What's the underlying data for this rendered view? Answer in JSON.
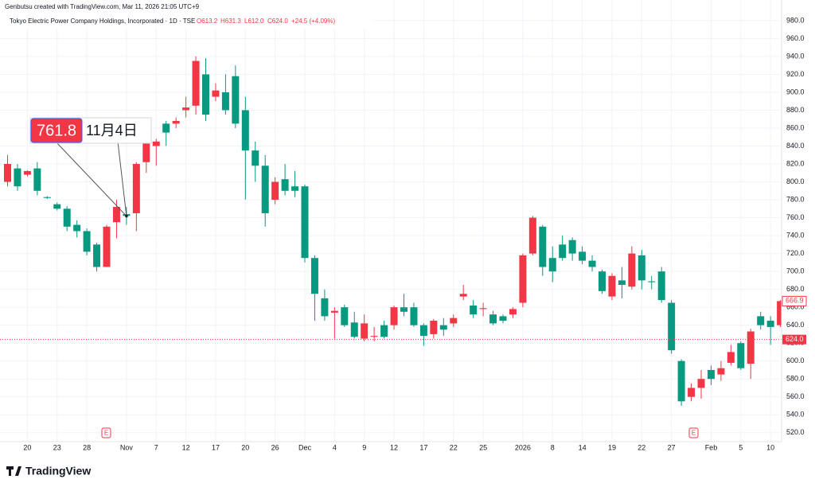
{
  "header": {
    "credit": "Genbutsu created with TradingView.com, Mar 11, 2026 21:05 UTC+9",
    "symbol": "Tokyo Electric Power Company Holdings, Incorporated · 1D · TSE",
    "ohlc": [
      "O613.2",
      "H631.3",
      "L612.0",
      "C624.0"
    ],
    "change": "+24.5 (+4.09%)"
  },
  "footer": {
    "logo": "TradingView"
  },
  "chart_data": {
    "type": "candlestick",
    "categories": [
      null,
      null,
      "20",
      null,
      null,
      "23",
      null,
      null,
      "28",
      null,
      null,
      null,
      "Nov",
      null,
      null,
      "7",
      null,
      null,
      "12",
      null,
      null,
      "17",
      null,
      null,
      "20",
      null,
      null,
      "26",
      null,
      null,
      "Dec",
      null,
      null,
      "4",
      null,
      null,
      "9",
      null,
      null,
      "12",
      null,
      null,
      "17",
      null,
      null,
      "22",
      null,
      null,
      "25",
      null,
      null,
      null,
      "2026",
      null,
      null,
      "8",
      null,
      null,
      "14",
      null,
      null,
      "19",
      null,
      null,
      "22",
      null,
      null,
      "27",
      null,
      null,
      null,
      "Feb",
      null,
      null,
      "5",
      null,
      null,
      "10",
      null
    ],
    "open": [
      800,
      815,
      808,
      815,
      783,
      775,
      770,
      752,
      745,
      730,
      705,
      755,
      764,
      765,
      822,
      840,
      865,
      865,
      880,
      885,
      920,
      895,
      900,
      918,
      880,
      835,
      818,
      780,
      803,
      795,
      795,
      715,
      670,
      654,
      660,
      643,
      625,
      627,
      640,
      640,
      660,
      660,
      640,
      630,
      640,
      642,
      672,
      662,
      658,
      652,
      650,
      652,
      665,
      720,
      750,
      715,
      730,
      735,
      722,
      712,
      700,
      672,
      690,
      683,
      718,
      689,
      700,
      665,
      600,
      560,
      570,
      590,
      585,
      598,
      620,
      597,
      650,
      645,
      640
    ],
    "high": [
      830,
      820,
      813,
      822,
      784,
      777,
      773,
      757,
      748,
      732,
      752,
      780,
      772,
      822,
      850,
      848,
      868,
      872,
      895,
      940,
      938,
      910,
      920,
      930,
      895,
      845,
      830,
      805,
      820,
      812,
      797,
      718,
      680,
      660,
      663,
      655,
      652,
      638,
      645,
      662,
      675,
      665,
      642,
      647,
      648,
      652,
      685,
      668,
      665,
      656,
      652,
      660,
      720,
      762,
      752,
      728,
      740,
      738,
      728,
      718,
      702,
      698,
      705,
      728,
      724,
      695,
      705,
      668,
      602,
      575,
      590,
      595,
      600,
      618,
      622,
      636,
      655,
      650,
      668
    ],
    "low": [
      795,
      790,
      806,
      785,
      781,
      768,
      745,
      738,
      718,
      700,
      705,
      737,
      752,
      745,
      810,
      818,
      840,
      860,
      872,
      875,
      868,
      890,
      875,
      860,
      780,
      800,
      750,
      775,
      785,
      783,
      710,
      645,
      645,
      625,
      638,
      625,
      622,
      622,
      625,
      635,
      650,
      638,
      617,
      625,
      628,
      638,
      668,
      648,
      650,
      640,
      642,
      648,
      660,
      718,
      695,
      688,
      712,
      712,
      708,
      700,
      675,
      668,
      670,
      680,
      680,
      680,
      665,
      608,
      550,
      555,
      558,
      573,
      578,
      595,
      590,
      580,
      635,
      618,
      638
    ],
    "close": [
      820,
      795,
      812,
      790,
      782,
      770,
      750,
      745,
      722,
      705,
      750,
      772,
      762,
      820,
      845,
      845,
      855,
      868,
      883,
      935,
      875,
      902,
      880,
      865,
      835,
      818,
      765,
      800,
      790,
      790,
      715,
      675,
      650,
      656,
      640,
      627,
      642,
      628,
      627,
      660,
      655,
      640,
      628,
      645,
      635,
      648,
      675,
      652,
      659,
      642,
      645,
      658,
      718,
      760,
      705,
      700,
      715,
      720,
      712,
      705,
      678,
      695,
      685,
      720,
      690,
      688,
      668,
      612,
      555,
      570,
      580,
      580,
      592,
      610,
      592,
      633,
      640,
      638,
      666.9
    ],
    "up_color": "#f23645",
    "down_color": "#089981",
    "ylim": [
      510,
      1003
    ],
    "yticks": [
      {
        "value": 520,
        "label": "520.0"
      },
      {
        "value": 540,
        "label": "540.0"
      },
      {
        "value": 560,
        "label": "560.0"
      },
      {
        "value": 580,
        "label": "580.0"
      },
      {
        "value": 600,
        "label": "600.0"
      },
      {
        "value": 620,
        "label": "620.0"
      },
      {
        "value": 640,
        "label": "640.0"
      },
      {
        "value": 660,
        "label": "660.0"
      },
      {
        "value": 680,
        "label": "680.0"
      },
      {
        "value": 700,
        "label": "700.0"
      },
      {
        "value": 720,
        "label": "720.0"
      },
      {
        "value": 740,
        "label": "740.0"
      },
      {
        "value": 760,
        "label": "760.0"
      },
      {
        "value": 780,
        "label": "780.0"
      },
      {
        "value": 800,
        "label": "800.0"
      },
      {
        "value": 820,
        "label": "820.0"
      },
      {
        "value": 840,
        "label": "840.0"
      },
      {
        "value": 860,
        "label": "860.0"
      },
      {
        "value": 880,
        "label": "880.0"
      },
      {
        "value": 900,
        "label": "900.0"
      },
      {
        "value": 920,
        "label": "920.0"
      },
      {
        "value": 940,
        "label": "940.0"
      },
      {
        "value": 960,
        "label": "960.0"
      },
      {
        "value": 980,
        "label": "980.0"
      }
    ],
    "grid": true,
    "last_price": {
      "value": 624.0,
      "label": "624.0"
    },
    "last_close": {
      "value": 666.9,
      "label": "666.9"
    },
    "annotation": {
      "value": 761.8,
      "label": "761.8",
      "text": "11月4日"
    },
    "event_label": "E"
  }
}
